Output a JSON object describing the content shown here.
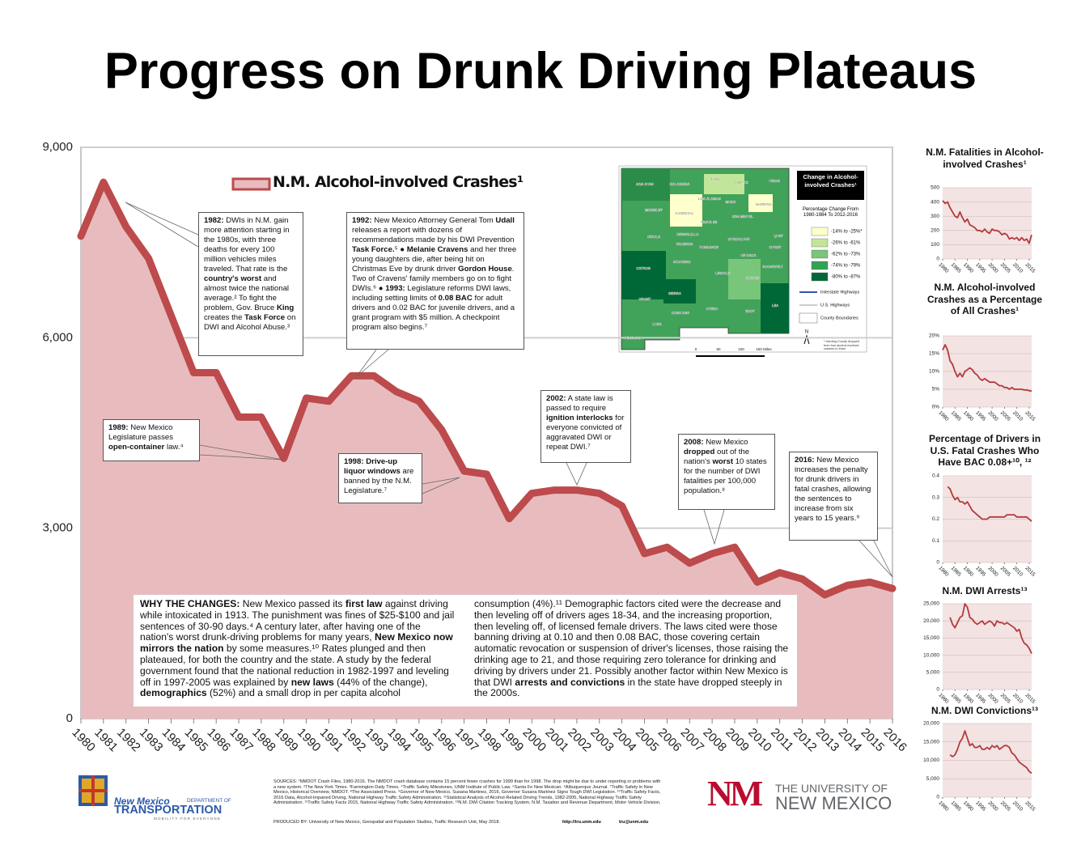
{
  "title": "Progress on Drunk Driving Plateaus",
  "chart_data": [
    {
      "type": "area",
      "legend_position": "upper left",
      "grid": true,
      "x": [
        1980,
        1981,
        1982,
        1983,
        1984,
        1985,
        1986,
        1987,
        1988,
        1989,
        1990,
        1991,
        1992,
        1993,
        1994,
        1995,
        1996,
        1997,
        1998,
        1999,
        2000,
        2001,
        2002,
        2003,
        2004,
        2005,
        2006,
        2007,
        2008,
        2009,
        2010,
        2011,
        2012,
        2013,
        2014,
        2015,
        2016
      ],
      "series": [
        {
          "name": "N.M. Alcohol-involved Crashes¹",
          "color": "#bd4a4c",
          "fill": "#e8bcbe",
          "values": [
            7600,
            8450,
            7750,
            7250,
            6350,
            5450,
            5450,
            4750,
            4750,
            4100,
            5050,
            5000,
            5400,
            5400,
            5150,
            5000,
            4550,
            3900,
            3850,
            3150,
            3550,
            3600,
            3600,
            3550,
            3350,
            2600,
            2700,
            2450,
            2600,
            2700,
            2150,
            2300,
            2200,
            1950,
            2100,
            2150,
            2050
          ]
        }
      ],
      "xlim": [
        1980,
        2016
      ],
      "xticks": [
        1980,
        1981,
        1982,
        1983,
        1984,
        1985,
        1986,
        1987,
        1988,
        1989,
        1990,
        1991,
        1992,
        1993,
        1994,
        1995,
        1996,
        1997,
        1998,
        1999,
        2000,
        2001,
        2002,
        2003,
        2004,
        2005,
        2006,
        2007,
        2008,
        2009,
        2010,
        2011,
        2012,
        2013,
        2014,
        2015,
        2016
      ],
      "ylim": [
        0,
        9000
      ],
      "yticks": [
        0,
        {
          "value": 3000,
          "label": "3,000"
        },
        {
          "value": 6000,
          "label": "6,000"
        },
        {
          "value": 9000,
          "label": "9,000"
        }
      ]
    },
    {
      "type": "line",
      "title": "N.M. Fatalities in Alcohol-involved Crashes¹",
      "color": "#b23a3c",
      "grid": true,
      "x": [
        1980,
        1981,
        1982,
        1983,
        1984,
        1985,
        1986,
        1987,
        1988,
        1989,
        1990,
        1991,
        1992,
        1993,
        1994,
        1995,
        1996,
        1997,
        1998,
        1999,
        2000,
        2001,
        2002,
        2003,
        2004,
        2005,
        2006,
        2007,
        2008,
        2009,
        2010,
        2011,
        2012,
        2013,
        2014,
        2015,
        2016
      ],
      "values": [
        410,
        390,
        400,
        360,
        330,
        300,
        290,
        330,
        290,
        260,
        280,
        240,
        230,
        220,
        200,
        200,
        190,
        210,
        190,
        180,
        210,
        200,
        200,
        190,
        170,
        180,
        170,
        140,
        150,
        140,
        150,
        130,
        150,
        130,
        140,
        110,
        170
      ],
      "xlim": [
        1980,
        2016
      ],
      "xticks": [
        1980,
        1985,
        1990,
        1995,
        2000,
        2005,
        2010,
        2015
      ],
      "ylim": [
        0,
        500
      ],
      "yticks": [
        0,
        100,
        200,
        300,
        400,
        500
      ]
    },
    {
      "type": "line",
      "title": "N.M. Alcohol-involved Crashes as a Percentage of All Crashes¹",
      "color": "#b23a3c",
      "grid": true,
      "x": [
        1980,
        1981,
        1982,
        1983,
        1984,
        1985,
        1986,
        1987,
        1988,
        1989,
        1990,
        1991,
        1992,
        1993,
        1994,
        1995,
        1996,
        1997,
        1998,
        1999,
        2000,
        2001,
        2002,
        2003,
        2004,
        2005,
        2006,
        2007,
        2008,
        2009,
        2010,
        2011,
        2012,
        2013,
        2014,
        2015,
        2016
      ],
      "values": [
        16,
        17.5,
        16,
        13,
        12,
        10,
        8.5,
        9.5,
        8.5,
        10,
        10.5,
        11,
        10.5,
        9.5,
        9,
        8,
        7.5,
        8,
        7.5,
        7,
        7,
        7,
        6.5,
        6,
        6,
        5.5,
        5.5,
        5,
        5.5,
        5,
        5,
        5,
        5,
        4.8,
        4.8,
        4.6,
        4.5
      ],
      "xlim": [
        1980,
        2016
      ],
      "xticks": [
        1980,
        1985,
        1990,
        1995,
        2000,
        2005,
        2010,
        2015
      ],
      "ylim": [
        0,
        20
      ],
      "yticks": [
        {
          "value": 0,
          "label": "0%"
        },
        {
          "value": 5,
          "label": "5%"
        },
        {
          "value": 10,
          "label": "10%"
        },
        {
          "value": 15,
          "label": "15%"
        },
        {
          "value": 20,
          "label": "20%"
        }
      ]
    },
    {
      "type": "line",
      "title": "Percentage of Drivers in U.S. Fatal Crashes Who Have BAC 0.08+¹⁰, ¹²",
      "color": "#b23a3c",
      "grid": true,
      "x": [
        1982,
        1983,
        1984,
        1985,
        1986,
        1987,
        1988,
        1989,
        1990,
        1991,
        1992,
        1993,
        1994,
        1995,
        1996,
        1997,
        1998,
        1999,
        2000,
        2001,
        2002,
        2003,
        2004,
        2005,
        2006,
        2007,
        2008,
        2009,
        2010,
        2011,
        2012,
        2013,
        2014,
        2015,
        2016
      ],
      "values": [
        0.35,
        0.34,
        0.31,
        0.29,
        0.3,
        0.28,
        0.28,
        0.27,
        0.28,
        0.26,
        0.24,
        0.23,
        0.22,
        0.21,
        0.2,
        0.2,
        0.2,
        0.21,
        0.21,
        0.21,
        0.21,
        0.21,
        0.21,
        0.21,
        0.22,
        0.22,
        0.22,
        0.22,
        0.21,
        0.21,
        0.21,
        0.21,
        0.21,
        0.2,
        0.19
      ],
      "xlim": [
        1980,
        2016
      ],
      "xticks": [
        1980,
        1985,
        1990,
        1995,
        2000,
        2005,
        2010,
        2015
      ],
      "ylim": [
        0,
        0.4
      ],
      "yticks": [
        0,
        0.1,
        0.2,
        0.3,
        0.4
      ]
    },
    {
      "type": "line",
      "title": "N.M. DWI Arrests¹³",
      "color": "#b23a3c",
      "grid": true,
      "x": [
        1983,
        1984,
        1985,
        1986,
        1987,
        1988,
        1989,
        1990,
        1991,
        1992,
        1993,
        1994,
        1995,
        1996,
        1997,
        1998,
        1999,
        2000,
        2001,
        2002,
        2003,
        2004,
        2005,
        2006,
        2007,
        2008,
        2009,
        2010,
        2011,
        2012,
        2013,
        2014,
        2015,
        2016
      ],
      "values": [
        21000,
        19000,
        18000,
        19500,
        21000,
        21500,
        25000,
        24000,
        21000,
        20500,
        19500,
        19000,
        19500,
        20000,
        19000,
        19500,
        20000,
        19500,
        18500,
        20000,
        19500,
        19500,
        19000,
        19500,
        19000,
        18500,
        18000,
        17000,
        17500,
        15000,
        13500,
        13000,
        12000,
        10500
      ],
      "xlim": [
        1980,
        2016
      ],
      "xticks": [
        1980,
        1985,
        1990,
        1995,
        2000,
        2005,
        2010,
        2015
      ],
      "ylim": [
        0,
        25000
      ],
      "yticks": [
        0,
        {
          "value": 5000,
          "label": "5,000"
        },
        {
          "value": 10000,
          "label": "10,000"
        },
        {
          "value": 15000,
          "label": "15,000"
        },
        {
          "value": 20000,
          "label": "20,000"
        },
        {
          "value": 25000,
          "label": "25,000"
        }
      ]
    },
    {
      "type": "line",
      "title": "N.M. DWI Convictions¹³",
      "color": "#b23a3c",
      "grid": true,
      "x": [
        1983,
        1984,
        1985,
        1986,
        1987,
        1988,
        1989,
        1990,
        1991,
        1992,
        1993,
        1994,
        1995,
        1996,
        1997,
        1998,
        1999,
        2000,
        2001,
        2002,
        2003,
        2004,
        2005,
        2006,
        2007,
        2008,
        2009,
        2010,
        2011,
        2012,
        2013,
        2014,
        2015,
        2016
      ],
      "values": [
        11500,
        11000,
        11500,
        13000,
        15000,
        16000,
        18000,
        16000,
        14000,
        14500,
        13500,
        13500,
        14000,
        13000,
        13000,
        13500,
        13000,
        14000,
        13500,
        14000,
        13000,
        13500,
        14000,
        14000,
        13500,
        12000,
        11500,
        10500,
        9500,
        9000,
        8500,
        8000,
        7000,
        6500
      ],
      "xlim": [
        1980,
        2016
      ],
      "xticks": [
        1980,
        1985,
        1990,
        1995,
        2000,
        2005,
        2010,
        2015
      ],
      "ylim": [
        0,
        20000
      ],
      "yticks": [
        0,
        {
          "value": 5000,
          "label": "5,000"
        },
        {
          "value": 10000,
          "label": "10,000"
        },
        {
          "value": 15000,
          "label": "15,000"
        },
        {
          "value": 20000,
          "label": "20,000"
        }
      ]
    }
  ],
  "annotations": [
    {
      "parts": [
        {
          "text": "1982:",
          "bold": true
        },
        {
          "text": " DWIs in N.M. gain more attention starting in the 1980s, with three deaths for every 100 million vehicles miles traveled. That rate is the "
        },
        {
          "text": "country's worst",
          "bold": true
        },
        {
          "text": " and almost twice the national average.² To fight the problem, Gov. Bruce "
        },
        {
          "text": "King",
          "bold": true
        },
        {
          "text": " creates the "
        },
        {
          "text": "Task Force",
          "bold": true
        },
        {
          "text": " on DWI and Alcohol Abuse.³"
        }
      ]
    },
    {
      "parts": [
        {
          "text": "1989:",
          "bold": true
        },
        {
          "text": " New Mexico Legislature passes "
        },
        {
          "text": "open-container",
          "bold": true
        },
        {
          "text": " law.⁴"
        }
      ]
    },
    {
      "parts": [
        {
          "text": "1992:",
          "bold": true
        },
        {
          "text": " New Mexico Attorney General Tom "
        },
        {
          "text": "Udall",
          "bold": true
        },
        {
          "text": " releases a report with dozens of recommendations made by his DWI Prevention "
        },
        {
          "text": "Task Force.",
          "bold": true
        },
        {
          "text": "⁵ ● "
        },
        {
          "text": "Melanie Cravens",
          "bold": true
        },
        {
          "text": " and her three young daughters die, after being hit on Christmas Eve by drunk driver "
        },
        {
          "text": "Gordon House",
          "bold": true
        },
        {
          "text": ". Two of Cravens' family members go on to fight DWIs.⁶ ● "
        },
        {
          "text": "1993:",
          "bold": true
        },
        {
          "text": " Legislature reforms DWI laws, including setting limits of "
        },
        {
          "text": "0.08 BAC",
          "bold": true
        },
        {
          "text": " for adult drivers and 0.02 BAC for juvenile drivers, and a grant program with $5 million. A checkpoint program also begins.⁷"
        }
      ]
    },
    {
      "parts": [
        {
          "text": "1998: Drive-up liquor windows",
          "bold": true
        },
        {
          "text": " are banned by the N.M. Legislature.⁷"
        }
      ]
    },
    {
      "parts": [
        {
          "text": "2002:",
          "bold": true
        },
        {
          "text": " A state law is passed to require "
        },
        {
          "text": "ignition interlocks",
          "bold": true
        },
        {
          "text": " for everyone convicted of aggravated DWI or repeat DWI.⁷"
        }
      ]
    },
    {
      "parts": [
        {
          "text": "2008:",
          "bold": true
        },
        {
          "text": " New Mexico "
        },
        {
          "text": "dropped",
          "bold": true
        },
        {
          "text": " out of the nation's "
        },
        {
          "text": "worst",
          "bold": true
        },
        {
          "text": " 10 states for the number of DWI fatalities per 100,000 population.⁸"
        }
      ]
    },
    {
      "parts": [
        {
          "text": "2016:",
          "bold": true
        },
        {
          "text": " New Mexico increases the penalty for drunk drivers in fatal crashes, allowing the sentences to increase from six years to 15 years.⁹"
        }
      ]
    }
  ],
  "why_changes": [
    {
      "text": "WHY THE CHANGES:",
      "bold": true
    },
    {
      "text": " New Mexico passed its "
    },
    {
      "text": "first law",
      "bold": true
    },
    {
      "text": " against driving while intoxicated in 1913. The punishment was fines of $25-$100 and jail sentences of 30-90 days.⁴ A century later, after having one of the nation's worst drunk-driving problems for many years, "
    },
    {
      "text": "New Mexico now mirrors the nation",
      "bold": true
    },
    {
      "text": " by some measures.¹⁰ Rates plunged and then plateaued, for both the country and the state. A study by the federal government found that the national reduction in 1982-1997 and leveling off in 1997-2005 was explained by "
    },
    {
      "text": "new laws",
      "bold": true
    },
    {
      "text": " (44% of the change), "
    },
    {
      "text": "demographics",
      "bold": true
    },
    {
      "text": " (52%) and a small drop in per capita alcohol consumption (4%).¹¹ Demographic factors cited were the decrease and then leveling off of drivers ages 18-34, and the increasing proportion, then leveling off, of licensed female drivers. The laws cited were those banning driving at 0.10 and then 0.08 BAC, those covering certain automatic revocation or suspension of driver's licenses, those raising the drinking age to 21, and those requiring zero tolerance for drinking and driving by drivers under 21. Possibly another factor within New Mexico is that DWI "
    },
    {
      "text": "arrests and convictions",
      "bold": true
    },
    {
      "text": " in the state have dropped steeply in the 2000s."
    }
  ],
  "map": {
    "legend_title": "Change in Alcohol-involved Crashes¹",
    "subtitle": "Percentage Change From 1980-1984 To 2012-2016",
    "classes": [
      {
        "label": "-14% to -25%*",
        "color": "#ffffcc"
      },
      {
        "label": "-26% to -61%",
        "color": "#c2e699"
      },
      {
        "label": "-62% to -73%",
        "color": "#78c679"
      },
      {
        "label": "-74% to -79%",
        "color": "#31a354"
      },
      {
        "label": "-80% to -87%",
        "color": "#006837"
      }
    ],
    "features": [
      "Interstate Highways",
      "U.S. Highways",
      "County Boundaries"
    ],
    "note": "* Harding County dropped from four alcohol-involved crashes to three",
    "scale": [
      "0",
      "50",
      "100",
      "150 Miles"
    ],
    "north": "N",
    "counties": [
      "SAN JUAN",
      "RIO ARRIBA",
      "TAOS",
      "COLFAX",
      "UNION",
      "MCKINLEY",
      "SANDOVAL",
      "LOS ALAMOS",
      "MORA",
      "HARDING",
      "SANTA FE",
      "SAN MIGUEL",
      "QUAY",
      "CIBOLA",
      "BERNALILLO",
      "VALENCIA",
      "TORRANCE",
      "GUADALUPE",
      "CURRY",
      "DE BACA",
      "ROOSEVELT",
      "CATRON",
      "SOCORRO",
      "LINCOLN",
      "CHAVES",
      "SIERRA",
      "GRANT",
      "OTERO",
      "LEA",
      "DONA ANA",
      "EDDY",
      "LUNA",
      "HIDALGO"
    ]
  },
  "footer": {
    "sources": "SOURCES: ¹NMDOT Crash Files, 1980-2016. The NMDOT crash database contains 15 percent fewer crashes for 1999 than for 1998. The drop might be due to under-reporting or problems with a new system. ²The New York Times. ³Farmington Daily Times. ⁴Traffic Safety Milestones, UNM Institute of Public Law. ⁵Santa Fe New Mexican. ⁶Albuquerque Journal. ⁷Traffic Safety in New Mexico, Historical Overview, NMDOT. ⁸The Associated Press. ⁹Governor of New Mexico, Susana Martinez, 2016, Governor Susana Martinez Signs Tough DWI Legislation. ¹⁰Traffic Safety Facts, 2016 Data, Alcohol-Impaired Driving, National Highway Traffic Safety Administration. ¹¹Statistical Analysis of Alcohol-Related Driving Trends, 1982-2005, National Highway Traffic Safety Administration. ¹²Traffic Safety Facts 2015, National Highway Traffic Safety Administration. ¹³N.M. DWI Citation Tracking System, N.M. Taxation and Revenue Department, Motor Vehicle Division.",
    "produced": "PRODUCED BY: University of New Mexico, Geospatial and Population Studies, Traffic Research Unit, May 2018.",
    "url": "http://tru.unm.edu",
    "email": "tru@unm.edu",
    "dot_name": "New Mexico",
    "dot_dept": "DEPARTMENT OF",
    "dot_trans": "TRANSPORTATION",
    "dot_tagline": "MOBILITY FOR EVERYONE",
    "unm_mark": "NM",
    "unm_line1": "THE UNIVERSITY OF",
    "unm_line2": "NEW MEXICO"
  }
}
